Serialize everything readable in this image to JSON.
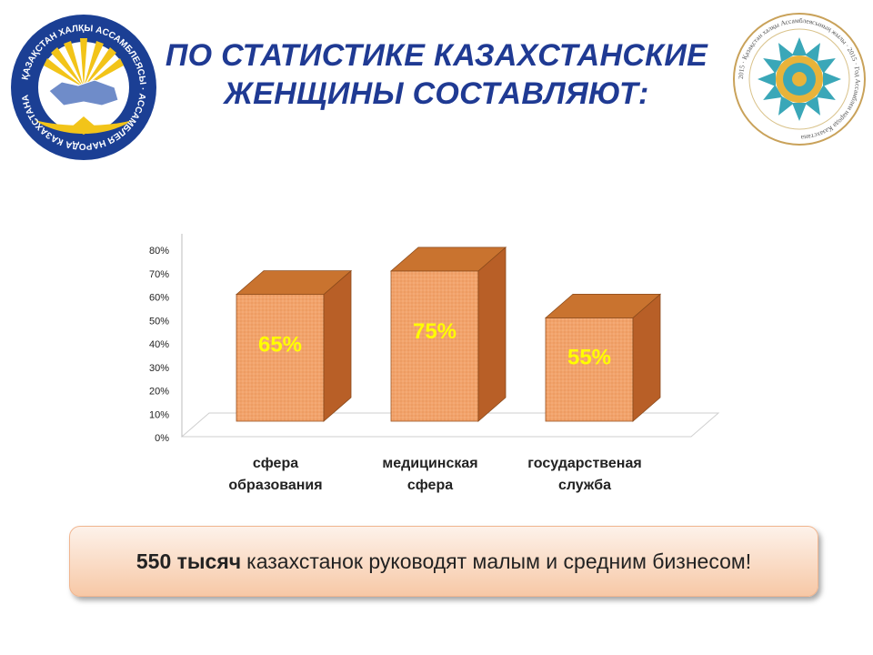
{
  "slide": {
    "title_line1": "ПО СТАТИСТИКЕ КАЗАХСТАНСКИЕ",
    "title_line2": "ЖЕНЩИНЫ СОСТАВЛЯЮТ:",
    "banner_bold": "550 тысяч",
    "banner_text": "казахстанок руководят малым и средним бизнесом!"
  },
  "logos": {
    "left": {
      "text": "ҚАЗАҚСТАН ХАЛҚЫ АССАМБЛЕЯСЫ · АССАМБЛЕЯ НАРОДА КАЗАХСТАНА",
      "icon": "assembly-emblem-icon"
    },
    "right": {
      "text": "2015 · Қазақстан халқы Ассамблеясының жылы · 2015 · Год Ассамблеи народа Казахстана",
      "icon": "assembly-year-emblem-icon"
    }
  },
  "chart_data": {
    "type": "bar",
    "categories": [
      "сфера образования",
      "медицинская сфера",
      "государственая служба"
    ],
    "category_lines": [
      [
        "сфера",
        "образования"
      ],
      [
        "медицинская",
        "сфера"
      ],
      [
        "государственая",
        "служба"
      ]
    ],
    "values": [
      65,
      75,
      55
    ],
    "data_labels": [
      "65%",
      "75%",
      "55%"
    ],
    "yticks": [
      "0%",
      "10%",
      "20%",
      "30%",
      "40%",
      "50%",
      "60%",
      "70%",
      "80%"
    ],
    "ylim": [
      0,
      80
    ],
    "style": "3d-column",
    "colors": {
      "front": "#f2a36b",
      "side": "#b85f27",
      "top": "#c9732f",
      "label": "#ffff00"
    },
    "grid": false
  },
  "colors": {
    "title": "#1f3a93",
    "banner_top": "#fdf2ea",
    "banner_bottom": "#f7c8a6"
  }
}
